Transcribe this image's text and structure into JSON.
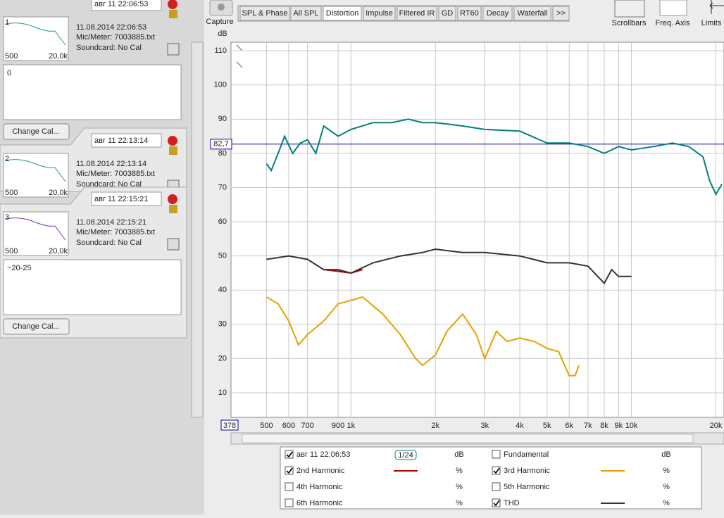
{
  "sidebar": {
    "measurements": [
      {
        "id": "1",
        "tab": "авг 11 22:06:53",
        "date": "11.08.2014 22:06:53",
        "mic": "Mic/Meter: 7003885.txt",
        "soundcard": "Soundcard: No Cal",
        "thumb_min": "500",
        "thumb_max": "20,0k",
        "notes": "0",
        "button": "Change Cal..."
      },
      {
        "id": "2",
        "tab": "авг 11 22:13:14",
        "date": "11.08.2014 22:13:14",
        "mic": "Mic/Meter: 7003885.txt",
        "soundcard": "Soundcard: No Cal",
        "thumb_min": "500",
        "thumb_max": "20,0k"
      },
      {
        "id": "3",
        "tab": "авг 11 22:15:21",
        "date": "11.08.2014 22:15:21",
        "mic": "Mic/Meter: 7003885.txt",
        "soundcard": "Soundcard: No Cal",
        "thumb_min": "500",
        "thumb_max": "20,0k",
        "notes": "~20-25",
        "button": "Change Cal..."
      }
    ]
  },
  "toolbar": {
    "capture": "Capture",
    "tabs": [
      "SPL & Phase",
      "All SPL",
      "Distortion",
      "Impulse",
      "Filtered IR",
      "GD",
      "RT60",
      "Decay",
      "Waterfall",
      ">>"
    ],
    "active_tab": 2,
    "right": [
      "Scrollbars",
      "Freq. Axis",
      "Limits"
    ]
  },
  "chart_data": {
    "type": "line",
    "y_label": "dB",
    "log_x": true,
    "grid": true,
    "xlim": [
      378,
      21380
    ],
    "ylim": [
      2.8,
      112.5
    ],
    "xticks": [
      {
        "value": 378,
        "label": "378"
      },
      500,
      600,
      700,
      900,
      {
        "value": 1000,
        "label": "1k"
      },
      {
        "value": 2000,
        "label": "2k"
      },
      {
        "value": 3000,
        "label": "3k"
      },
      {
        "value": 4000,
        "label": "4k"
      },
      {
        "value": 5000,
        "label": "5k"
      },
      {
        "value": 6000,
        "label": "6k"
      },
      {
        "value": 7000,
        "label": "7k"
      },
      {
        "value": 8000,
        "label": "8k"
      },
      {
        "value": 9000,
        "label": "9k"
      },
      {
        "value": 10000,
        "label": "10k"
      },
      {
        "value": 20000,
        "label": "20k"
      }
    ],
    "yticks": [
      10,
      20,
      30,
      40,
      50,
      60,
      70,
      80,
      90,
      100,
      110
    ],
    "cursor": {
      "value": 82.7,
      "label": "82,7"
    },
    "series": [
      {
        "name": "авг 11 22:06:53",
        "color": "#00807e",
        "text_color": "#007070",
        "unit": "dB",
        "resolution": "1/24",
        "checked": true,
        "x": [
          500,
          520,
          550,
          580,
          620,
          660,
          700,
          750,
          800,
          900,
          1000,
          1200,
          1400,
          1600,
          1800,
          2000,
          2500,
          3000,
          4000,
          5000,
          6000,
          7000,
          8000,
          9000,
          10000,
          12000,
          14000,
          16000,
          18000,
          19000,
          20000,
          21000
        ],
        "values": [
          77,
          75,
          80,
          85,
          80,
          83,
          84,
          80,
          88,
          85,
          87,
          89,
          89,
          90,
          89,
          89,
          88,
          87,
          86.5,
          83,
          83,
          82,
          80,
          82,
          81,
          82,
          83,
          82,
          79,
          72,
          68,
          71
        ]
      },
      {
        "name": "2nd Harmonic",
        "color": "#b00000",
        "text_color": "#b00000",
        "unit": "%",
        "checked": true,
        "x": [
          800,
          900,
          1000,
          1100
        ],
        "values": [
          46,
          45.5,
          45,
          46
        ]
      },
      {
        "name": "3rd Harmonic",
        "color": "#e8a000",
        "text_color": "#c88000",
        "unit": "%",
        "checked": true,
        "x": [
          500,
          550,
          600,
          650,
          700,
          800,
          900,
          1000,
          1100,
          1300,
          1500,
          1700,
          1800,
          2000,
          2200,
          2500,
          2800,
          3000,
          3300,
          3600,
          4000,
          4500,
          5000,
          5500,
          6000,
          6300,
          6500
        ],
        "values": [
          38,
          36,
          31,
          24,
          27,
          31,
          36,
          37,
          38,
          33,
          27,
          20,
          18,
          21,
          28,
          33,
          27,
          20,
          28,
          25,
          26,
          25,
          23,
          22,
          15,
          15,
          18
        ]
      },
      {
        "name": "THD",
        "color": "#3a3030",
        "text_color": "#000000",
        "unit": "%",
        "checked": true,
        "x": [
          500,
          600,
          700,
          800,
          900,
          1000,
          1200,
          1500,
          1800,
          2000,
          2500,
          3000,
          4000,
          5000,
          6000,
          7000,
          8000,
          8500,
          9000,
          10000
        ],
        "values": [
          49,
          50,
          49,
          46,
          46,
          45,
          48,
          50,
          51,
          52,
          51,
          51,
          50,
          48,
          48,
          47,
          42,
          46,
          44,
          44
        ]
      }
    ],
    "inactive_series": [
      {
        "name": "Fundamental",
        "text_color": "#a05000",
        "unit": "dB"
      },
      {
        "name": "4th Harmonic",
        "text_color": "#c8c000",
        "unit": "%"
      },
      {
        "name": "5th Harmonic",
        "text_color": "#a0a000",
        "unit": "%"
      },
      {
        "name": "6th Harmonic",
        "text_color": "#5a8ad0",
        "unit": "%"
      }
    ]
  }
}
